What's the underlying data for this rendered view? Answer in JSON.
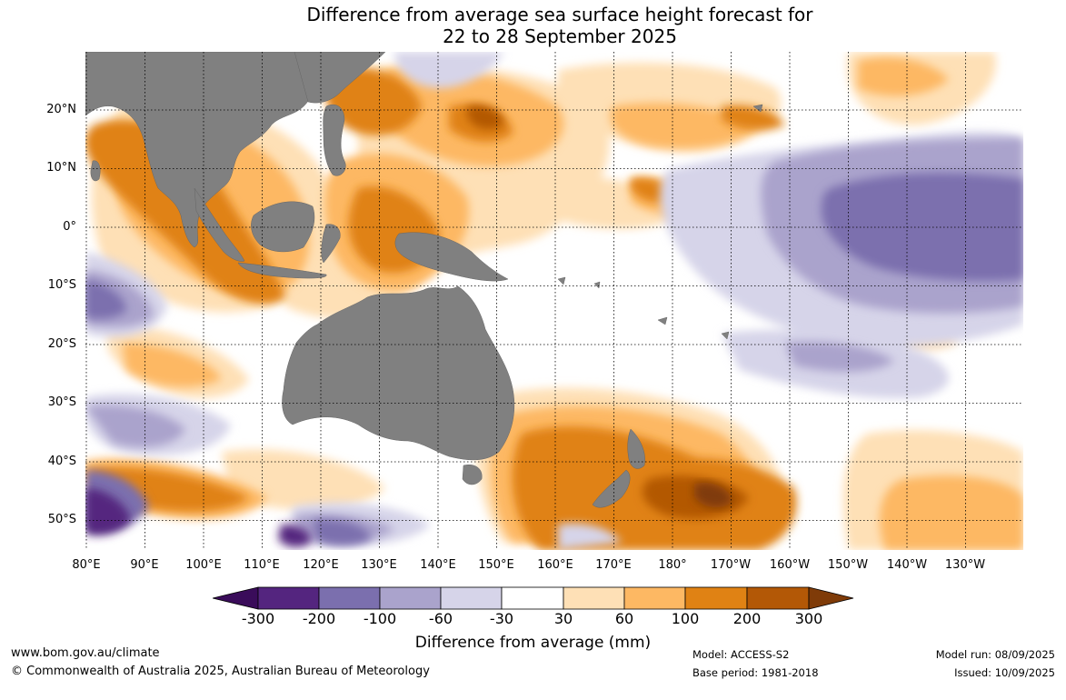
{
  "title": {
    "line1": "Difference from average sea surface height forecast for",
    "line2": "22 to 28 September 2025"
  },
  "map": {
    "latitude_labels": [
      "20°N",
      "10°N",
      "0°",
      "10°S",
      "20°S",
      "30°S",
      "40°S",
      "50°S"
    ],
    "longitude_labels": [
      "80°E",
      "90°E",
      "100°E",
      "110°E",
      "120°E",
      "130°E",
      "140°E",
      "150°E",
      "160°E",
      "170°E",
      "180°",
      "170°W",
      "160°W",
      "150°W",
      "140°W",
      "130°W"
    ],
    "land_color": "#808080",
    "grid_style": "dotted"
  },
  "legend": {
    "title": "Difference from average (mm)",
    "ticks": [
      "-300",
      "-200",
      "-100",
      "-60",
      "-30",
      "30",
      "60",
      "100",
      "200",
      "300"
    ],
    "colors": {
      "below_minus_300": "#3a0c5a",
      "minus_300_to_minus_200": "#54257f",
      "minus_200_to_minus_100": "#7b6fae",
      "minus_100_to_minus_60": "#aaa3cc",
      "minus_60_to_minus_30": "#d6d4e9",
      "minus_30_to_30": "#ffffff",
      "30_to_60": "#fee0b6",
      "60_to_100": "#fdb863",
      "100_to_200": "#e08214",
      "200_to_300": "#b35806",
      "above_300": "#7f3b08"
    }
  },
  "footer": {
    "website": "www.bom.gov.au/climate",
    "copyright": "© Commonwealth of Australia 2025, Australian Bureau of Meteorology",
    "model": "Model: ACCESS-S2",
    "base_period": "Base period: 1981-2018",
    "model_run": "Model run: 08/09/2025",
    "issued": "Issued: 10/09/2025"
  }
}
